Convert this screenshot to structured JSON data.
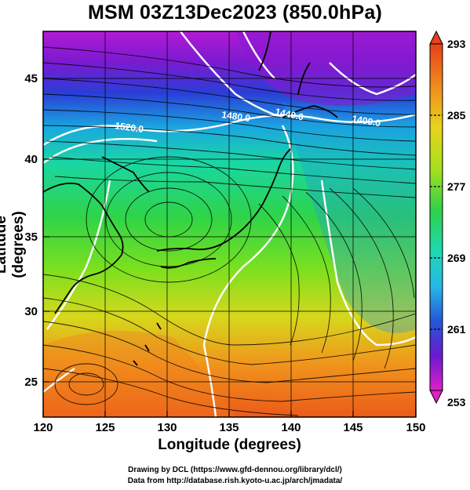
{
  "title": "MSM 03Z13Dec2023 (850.0hPa)",
  "xlabel": "Longitude (degrees)",
  "ylabel": "Latitude  (degrees)",
  "x_ticks": [
    "120",
    "125",
    "130",
    "135",
    "140",
    "145",
    "150"
  ],
  "y_ticks": [
    "25",
    "30",
    "35",
    "40",
    "45"
  ],
  "colorbar": {
    "ticks": [
      "293",
      "285",
      "277",
      "269",
      "261",
      "253"
    ],
    "min": 253,
    "max": 293
  },
  "contour_labels": [
    "1520.0",
    "1480.0",
    "1440.0",
    "1400.0"
  ],
  "credits": {
    "line1": "Drawing by DCL (https://www.gfd-dennou.org/library/dcl/)",
    "line2": "Data from http://database.rish.kyoto-u.ac.jp/arch/jmadata/"
  },
  "map": {
    "lon_range": [
      120,
      150
    ],
    "lat_range": [
      22.5,
      48
    ],
    "field": "temperature (K) with geopotential height contours and streamlines"
  }
}
